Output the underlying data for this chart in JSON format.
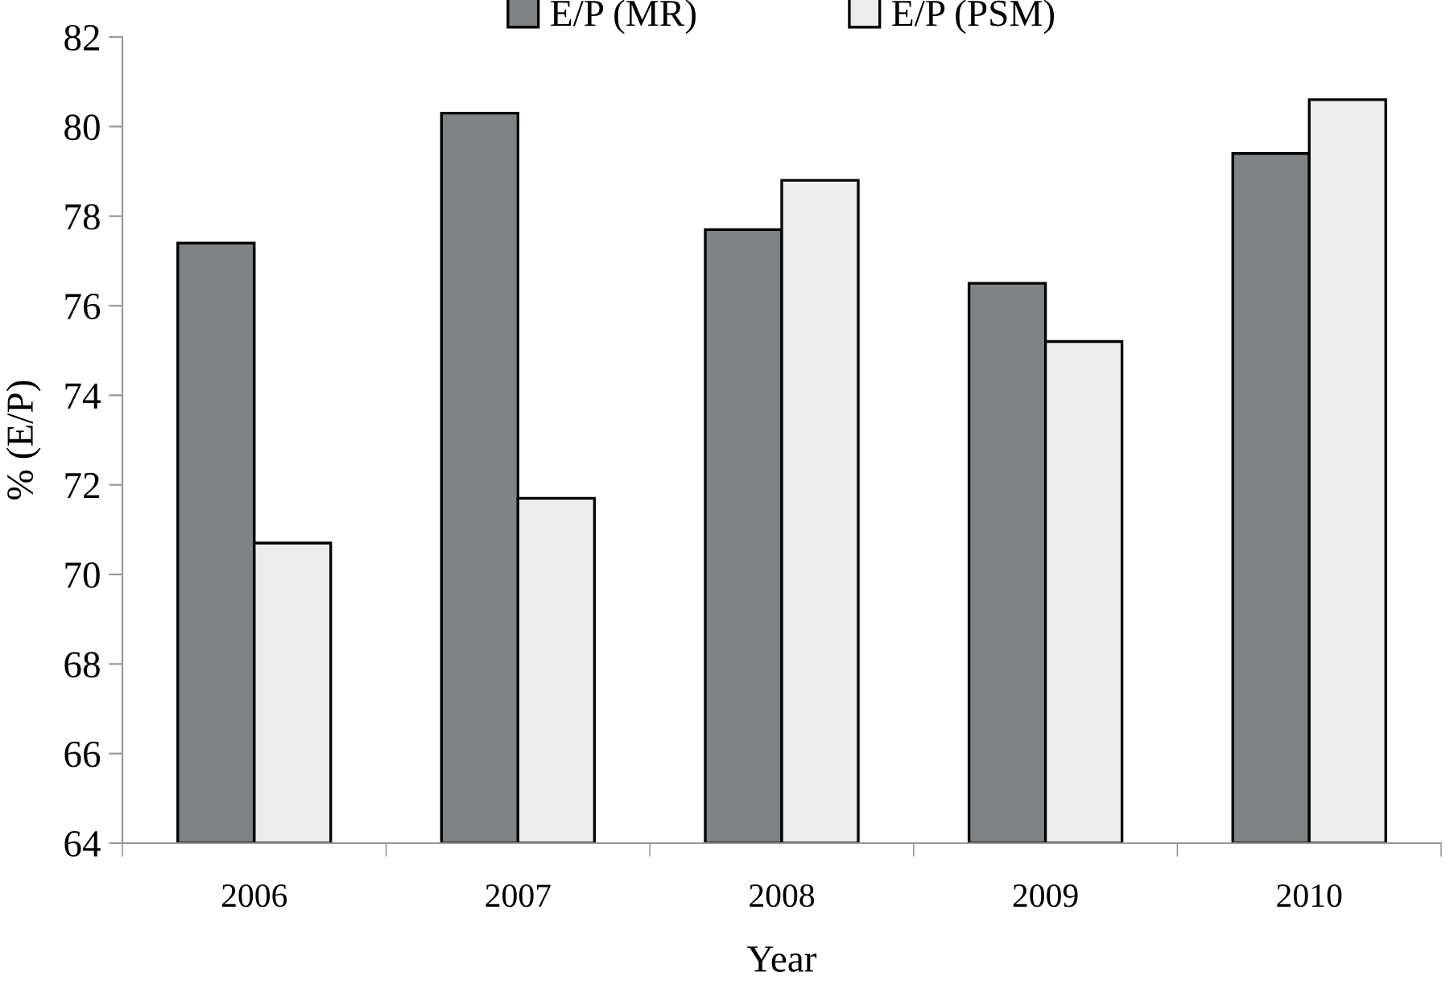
{
  "chart_data": {
    "type": "bar",
    "xlabel": "Year",
    "ylabel": "% (E/P)",
    "categories": [
      "2006",
      "2007",
      "2008",
      "2009",
      "2010"
    ],
    "series": [
      {
        "name": "E/P (MR)",
        "color": "#7f8385",
        "values": [
          77.4,
          80.3,
          77.7,
          76.5,
          79.4
        ]
      },
      {
        "name": "E/P (PSM)",
        "color": "#ececec",
        "values": [
          70.7,
          71.7,
          78.8,
          75.2,
          80.6
        ]
      }
    ],
    "ylim": [
      64,
      82
    ],
    "yticks": [
      64,
      66,
      68,
      70,
      72,
      74,
      76,
      78,
      80,
      82
    ],
    "grid": false,
    "legend": "top"
  }
}
